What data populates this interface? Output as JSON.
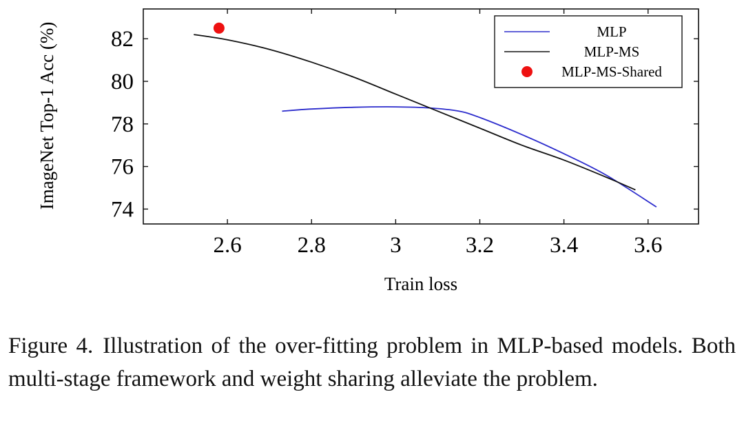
{
  "chart_data": {
    "type": "line",
    "xlabel": "Train loss",
    "ylabel": "ImageNet Top-1 Acc (%)",
    "xlim": [
      2.4,
      3.72
    ],
    "ylim": [
      73.3,
      83.4
    ],
    "xticks": [
      2.6,
      2.8,
      3,
      3.2,
      3.4,
      3.6
    ],
    "xtick_labels": [
      "2.6",
      "2.8",
      "3",
      "3.2",
      "3.4",
      "3.6"
    ],
    "yticks": [
      74,
      76,
      78,
      80,
      82
    ],
    "ytick_labels": [
      "74",
      "76",
      "78",
      "80",
      "82"
    ],
    "legend_position": "top-right",
    "series": [
      {
        "name": "MLP",
        "kind": "line",
        "color": "#2b2bcc",
        "x": [
          2.73,
          2.8,
          2.9,
          3.0,
          3.08,
          3.15,
          3.2,
          3.3,
          3.4,
          3.5,
          3.62
        ],
        "y": [
          78.6,
          78.7,
          78.78,
          78.8,
          78.75,
          78.6,
          78.3,
          77.5,
          76.6,
          75.6,
          74.1
        ]
      },
      {
        "name": "MLP-MS",
        "kind": "line",
        "color": "#111111",
        "x": [
          2.52,
          2.6,
          2.7,
          2.8,
          2.9,
          3.0,
          3.1,
          3.2,
          3.3,
          3.4,
          3.5,
          3.57
        ],
        "y": [
          82.2,
          81.95,
          81.5,
          80.9,
          80.2,
          79.4,
          78.6,
          77.8,
          77.0,
          76.3,
          75.5,
          74.9
        ]
      },
      {
        "name": "MLP-MS-Shared",
        "kind": "marker",
        "color": "#ee1111",
        "x": [
          2.58
        ],
        "y": [
          82.5
        ]
      }
    ]
  },
  "caption": {
    "lead": "Figure 4.",
    "text": "Illustration of the over-fitting problem in MLP-based models. Both multi-stage framework and weight sharing alleviate the problem."
  }
}
